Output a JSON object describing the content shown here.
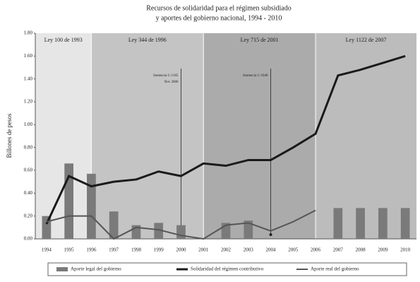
{
  "chart_data": {
    "type": "bar-line",
    "title": [
      "Recursos de solidaridad para el régimen subsidiado",
      "y aportes del gobierno nacional, 1994 - 2010"
    ],
    "ylabel": "Billones de pesos",
    "categories": [
      "1994",
      "1995",
      "1996",
      "1997",
      "1998",
      "1999",
      "2000",
      "2001",
      "2002",
      "2003",
      "2004",
      "2005",
      "2006",
      "2007",
      "2008",
      "2009",
      "2010"
    ],
    "ylim": [
      0,
      1.8
    ],
    "yticks": [
      {
        "value": 0,
        "label": "0.00"
      },
      {
        "value": 0.2,
        "label": "0.20"
      },
      {
        "value": 0.4,
        "label": "0.40"
      },
      {
        "value": 0.6,
        "label": "0.60"
      },
      {
        "value": 0.8,
        "label": "0.80"
      },
      {
        "value": 1,
        "label": "1.00"
      },
      {
        "value": 1.2,
        "label": "1.20"
      },
      {
        "value": 1.4,
        "label": "1.40"
      },
      {
        "value": 1.6,
        "label": "1.60"
      },
      {
        "value": 1.8,
        "label": "1.80"
      }
    ],
    "periods": [
      {
        "label": "Ley 100 de 1993",
        "color": "#e6e6e6"
      },
      {
        "label": "Ley 344 de 1996",
        "color": "#c4c4c4"
      },
      {
        "label": "Ley 715 de 2001",
        "color": "#ababab"
      },
      {
        "label": "Ley 1122 de 2007",
        "color": "#bcbcbc"
      }
    ],
    "annotations": [
      {
        "text": [
          "Sentencia C-1165",
          "Nov 2000"
        ],
        "category": 6
      },
      {
        "text": [
          "Sentencia C-1040"
        ],
        "category": 10
      }
    ],
    "series": [
      {
        "name": "Aporte legal del gobierno",
        "kind": "bar",
        "color": "#7a7a7a",
        "values": [
          0.2,
          0.66,
          0.57,
          0.24,
          0.12,
          0.14,
          0.12,
          null,
          0.14,
          0.16,
          null,
          null,
          null,
          0.27,
          0.27,
          0.27,
          0.27
        ]
      },
      {
        "name": "Solidaridad del régimen contributivo",
        "kind": "line",
        "color": "#1a1a1a",
        "values": [
          0.13,
          0.55,
          0.46,
          0.5,
          0.52,
          0.59,
          0.55,
          0.66,
          0.64,
          0.69,
          0.69,
          0.8,
          0.92,
          1.43,
          1.48,
          1.54,
          1.6
        ]
      },
      {
        "name": "Aporte real del gobierno",
        "kind": "line",
        "color": "#555555",
        "values": [
          0.15,
          0.2,
          0.2,
          0.0,
          0.1,
          0.08,
          0.03,
          0.0,
          0.12,
          0.14,
          0.07,
          0.15,
          0.25,
          null,
          null,
          null,
          null
        ]
      }
    ]
  }
}
